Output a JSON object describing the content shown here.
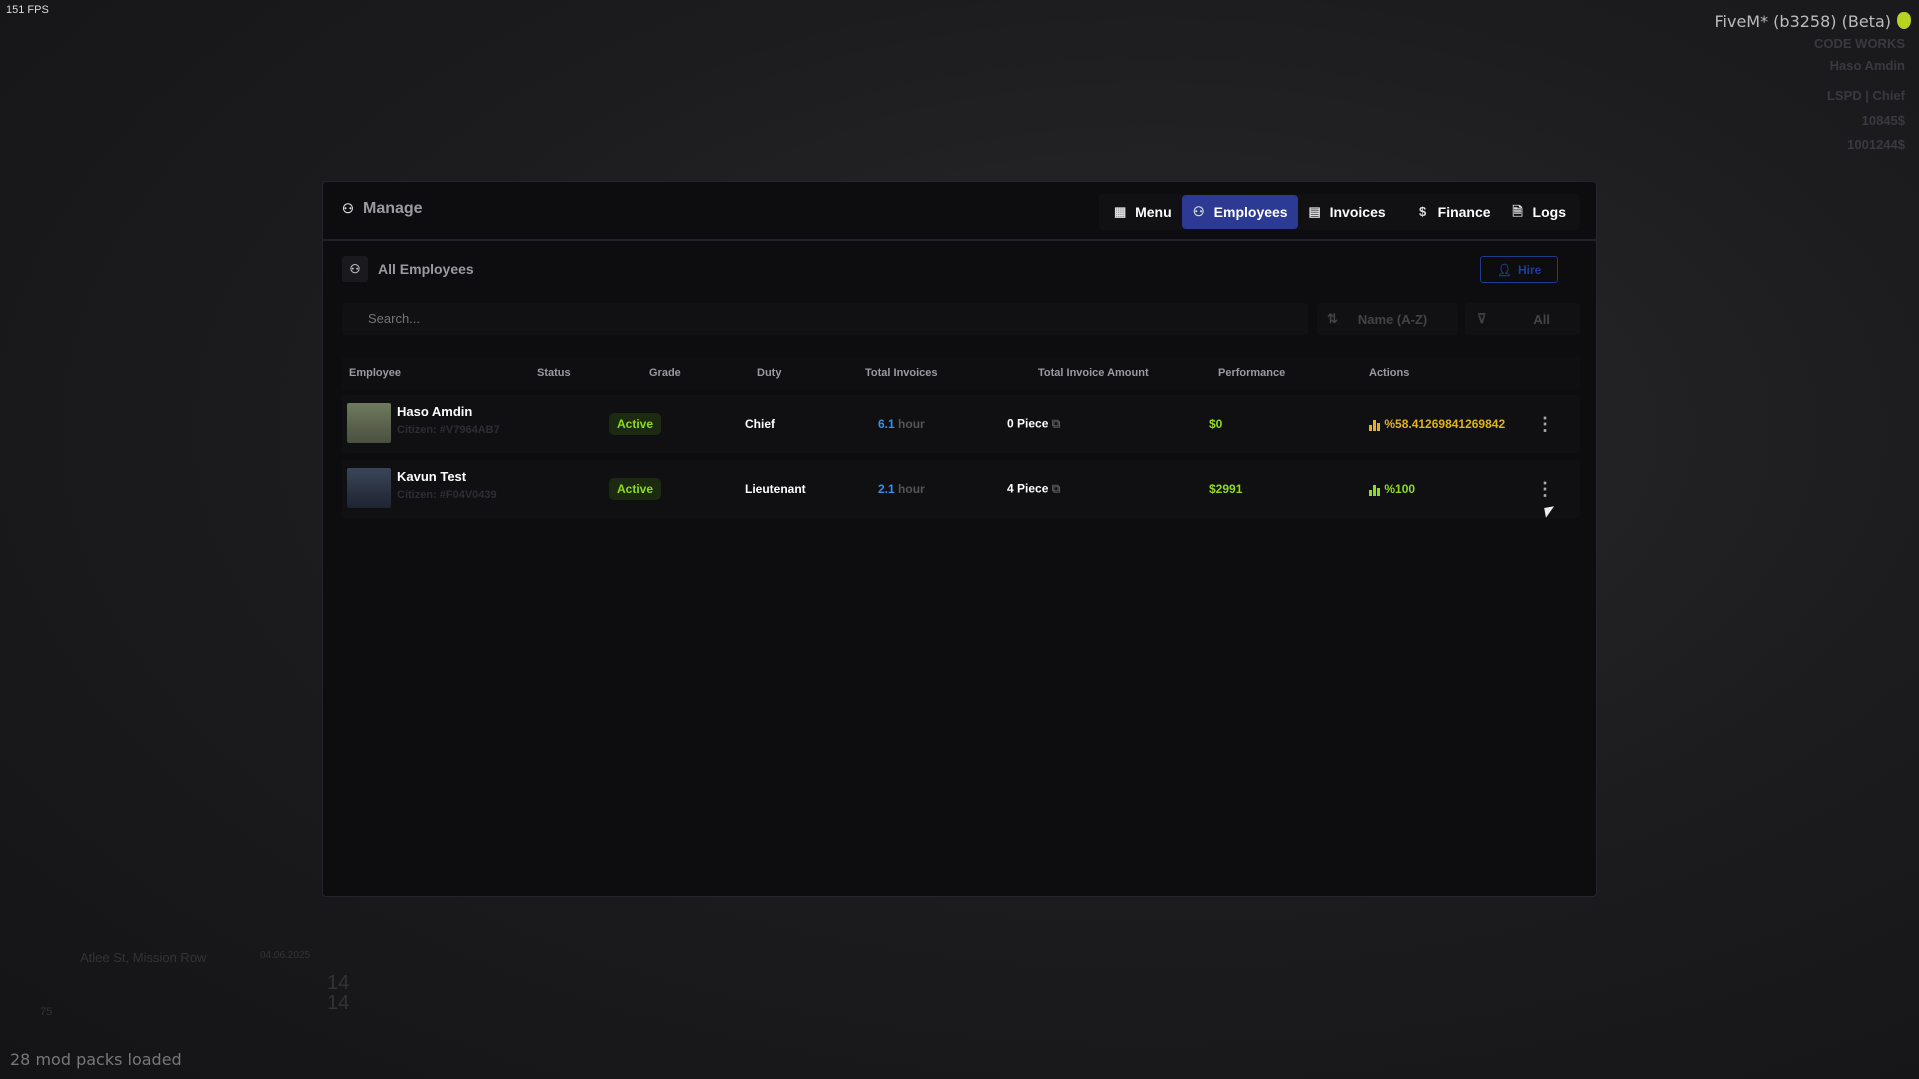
{
  "overlay": {
    "fps": "151 FPS",
    "client": "FiveM* (b3258) (Beta)",
    "mods": "28 mod packs loaded"
  },
  "hud": {
    "brand": "CODE WORKS",
    "player": "Haso Amdin",
    "job": "LSPD | Chief",
    "bank": "10845$",
    "cash": "1001244$",
    "street": "Atlee St, Mission Row",
    "date": "04.06.2025",
    "health": "75",
    "num1": "14",
    "num2": "14"
  },
  "panel": {
    "title": "Manage",
    "nav": [
      {
        "label": "Menu",
        "icon": "grid-icon"
      },
      {
        "label": "Employees",
        "icon": "users-icon",
        "active": true
      },
      {
        "label": "Invoices",
        "icon": "receipt-icon"
      },
      {
        "label": "Finance",
        "icon": "dollar-icon"
      },
      {
        "label": "Logs",
        "icon": "file-icon"
      }
    ],
    "section_title": "All Employees",
    "hire_label": "Hire",
    "search_placeholder": "Search...",
    "sort_label": "Name (A-Z)",
    "filter_label": "All",
    "columns": [
      "Employee",
      "Status",
      "Grade",
      "Duty",
      "Total Invoices",
      "Total Invoice Amount",
      "Performance",
      "Actions"
    ],
    "rows": [
      {
        "name": "Haso Amdin",
        "citizen": "Citizen: #V7964AB7",
        "status": "Active",
        "grade": "Chief",
        "duty": "6.1",
        "duty_unit": "hour",
        "invoices": "0 Piece",
        "amount": "$0",
        "performance": "%58.41269841269842",
        "perf_color": "#e0b416"
      },
      {
        "name": "Kavun Test",
        "citizen": "Citizen: #F04V0439",
        "status": "Active",
        "grade": "Lieutenant",
        "duty": "2.1",
        "duty_unit": "hour",
        "invoices": "4 Piece",
        "amount": "$2991",
        "performance": "%100",
        "perf_color": "#8fdc1e"
      }
    ]
  },
  "colors": {
    "accent": "#2c3a94",
    "active_green": "#8fdc1e",
    "duty_blue": "#3a8fe0",
    "perf_yellow": "#e0b416"
  }
}
